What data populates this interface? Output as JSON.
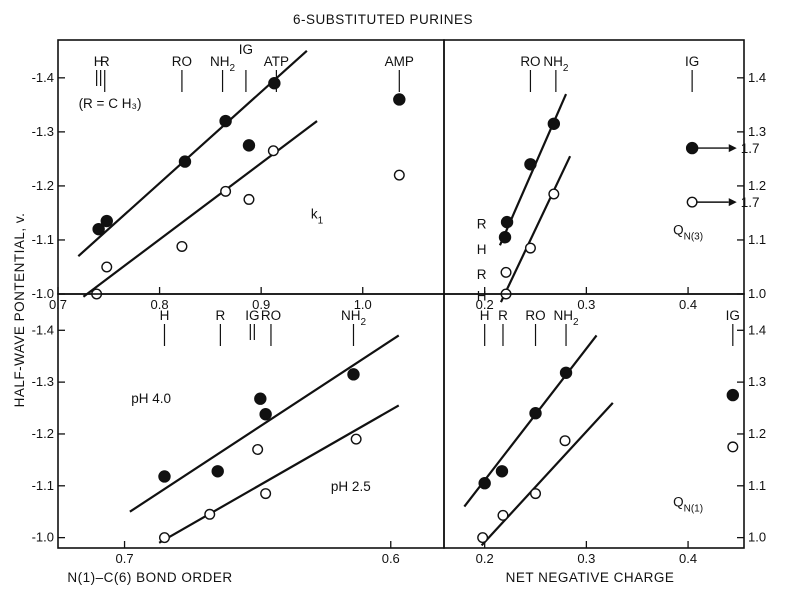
{
  "chart_data": {
    "type": "scatter",
    "title": "6-SUBSTITUTED PURINES",
    "ylabel": "HALF-WAVE PONTENTIAL, v.",
    "panels": [
      {
        "id": "top-left",
        "x": {
          "lim": [
            0.7,
            1.08
          ],
          "ticks": [
            0.7,
            0.8,
            0.9,
            1.0
          ],
          "tick_labels": [
            "0.7",
            "0.8",
            "0.9",
            "1.0"
          ]
        },
        "y": {
          "lim": [
            -1.0,
            -1.47
          ],
          "ticks": [
            -1.0,
            -1.1,
            -1.2,
            -1.3,
            -1.4
          ],
          "tick_labels": [
            "-1.0",
            "-1.1",
            "-1.2",
            "-1.3",
            "-1.4"
          ],
          "side": "left"
        },
        "annotations": [
          {
            "text": "k",
            "sub": "1",
            "x": 0.955,
            "y": -1.14
          }
        ],
        "substituent_markers": [
          {
            "label": "H",
            "x": 0.74,
            "double": true
          },
          {
            "label": "R",
            "x": 0.746
          },
          {
            "label": "RO",
            "x": 0.822
          },
          {
            "label": "NH",
            "sub": "2",
            "x": 0.862
          },
          {
            "label": "IG",
            "x": 0.885,
            "raised": true
          },
          {
            "label": "ATP",
            "x": 0.915
          },
          {
            "label": "AMP",
            "x": 1.036
          }
        ],
        "marker_note": "(R = C H₃)",
        "series": [
          {
            "marker": "filled",
            "points": [
              [
                0.74,
                -1.12
              ],
              [
                0.748,
                -1.135
              ],
              [
                0.825,
                -1.245
              ],
              [
                0.865,
                -1.32
              ],
              [
                0.888,
                -1.275
              ],
              [
                0.913,
                -1.39
              ],
              [
                1.036,
                -1.36
              ]
            ]
          },
          {
            "marker": "open",
            "points": [
              [
                0.738,
                -1.0
              ],
              [
                0.748,
                -1.05
              ],
              [
                0.822,
                -1.088
              ],
              [
                0.865,
                -1.19
              ],
              [
                0.888,
                -1.175
              ],
              [
                0.912,
                -1.265
              ],
              [
                1.036,
                -1.22
              ]
            ]
          }
        ],
        "lines": [
          {
            "x": [
              0.72,
              0.945
            ],
            "y": [
              -1.07,
              -1.45
            ]
          },
          {
            "x": [
              0.725,
              0.955
            ],
            "y": [
              -0.995,
              -1.32
            ]
          }
        ]
      },
      {
        "id": "top-right",
        "x": {
          "lim": [
            0.16,
            0.455
          ],
          "ticks": [
            0.2,
            0.3,
            0.4
          ],
          "tick_labels": [
            "0.2",
            "0.3",
            "0.4"
          ]
        },
        "y": {
          "lim": [
            -1.0,
            -1.47
          ],
          "ticks": [
            -1.0,
            -1.1,
            -1.2,
            -1.3,
            -1.4
          ],
          "tick_labels": [
            "1.0",
            "1.1",
            "1.2",
            "1.3",
            "1.4"
          ],
          "side": "right"
        },
        "annotations": [
          {
            "text": "Q",
            "sub": "N(3)",
            "x": 0.4,
            "y": -1.11
          }
        ],
        "substituent_markers": [
          {
            "label": "RO",
            "x": 0.245
          },
          {
            "label": "NH",
            "sub": "2",
            "x": 0.27
          },
          {
            "label": "IG",
            "x": 0.404
          }
        ],
        "side_labels": [
          {
            "text": "R",
            "x": 0.197,
            "y": -1.13
          },
          {
            "text": "H",
            "x": 0.197,
            "y": -1.083
          },
          {
            "text": "R",
            "x": 0.197,
            "y": -1.037
          },
          {
            "text": "H",
            "x": 0.197,
            "y": -0.997
          }
        ],
        "series": [
          {
            "marker": "filled",
            "points": [
              [
                0.222,
                -1.133
              ],
              [
                0.22,
                -1.105
              ],
              [
                0.245,
                -1.24
              ],
              [
                0.268,
                -1.315
              ],
              [
                0.404,
                -1.27
              ]
            ]
          },
          {
            "marker": "open",
            "points": [
              [
                0.221,
                -1.0
              ],
              [
                0.221,
                -1.04
              ],
              [
                0.245,
                -1.085
              ],
              [
                0.268,
                -1.185
              ],
              [
                0.404,
                -1.17
              ]
            ]
          }
        ],
        "arrows": [
          {
            "from": [
              0.408,
              -1.27
            ],
            "to": [
              0.44,
              -1.27
            ],
            "label": "1.7"
          },
          {
            "from": [
              0.408,
              -1.17
            ],
            "to": [
              0.44,
              -1.17
            ],
            "label": "1.7"
          }
        ],
        "lines": [
          {
            "x": [
              0.215,
              0.28
            ],
            "y": [
              -1.09,
              -1.37
            ]
          },
          {
            "x": [
              0.216,
              0.284
            ],
            "y": [
              -0.985,
              -1.255
            ]
          }
        ]
      },
      {
        "id": "bottom-left",
        "x": {
          "lim": [
            0.725,
            0.58
          ],
          "ticks": [
            0.7,
            0.6
          ],
          "tick_labels": [
            "0.7",
            "0.6"
          ]
        },
        "y": {
          "lim": [
            -0.98,
            -1.47
          ],
          "ticks": [
            -1.0,
            -1.1,
            -1.2,
            -1.3,
            -1.4
          ],
          "tick_labels": [
            "-1.0",
            "-1.1",
            "-1.2",
            "-1.3",
            "-1.4"
          ],
          "side": "left"
        },
        "xlabel": "N(1)–C(6) BOND ORDER",
        "series_labels": [
          {
            "text": "pH 4.0",
            "x": 0.69,
            "y": -1.26
          },
          {
            "text": "pH 2.5",
            "x": 0.615,
            "y": -1.09
          }
        ],
        "substituent_markers": [
          {
            "label": "H",
            "x": 0.685
          },
          {
            "label": "R",
            "x": 0.664
          },
          {
            "label": "IG",
            "x": 0.652,
            "double": true
          },
          {
            "label": "RO",
            "x": 0.645
          },
          {
            "label": "NH",
            "sub": "2",
            "x": 0.614
          }
        ],
        "series": [
          {
            "name": "pH 4.0",
            "marker": "filled",
            "points": [
              [
                0.685,
                -1.118
              ],
              [
                0.665,
                -1.128
              ],
              [
                0.649,
                -1.268
              ],
              [
                0.647,
                -1.238
              ],
              [
                0.614,
                -1.315
              ]
            ]
          },
          {
            "name": "pH 2.5",
            "marker": "open",
            "points": [
              [
                0.685,
                -1.0
              ],
              [
                0.668,
                -1.045
              ],
              [
                0.65,
                -1.17
              ],
              [
                0.647,
                -1.085
              ],
              [
                0.613,
                -1.19
              ]
            ]
          }
        ],
        "lines": [
          {
            "x": [
              0.698,
              0.597
            ],
            "y": [
              -1.05,
              -1.39
            ]
          },
          {
            "x": [
              0.687,
              0.597
            ],
            "y": [
              -0.99,
              -1.255
            ]
          }
        ]
      },
      {
        "id": "bottom-right",
        "x": {
          "lim": [
            0.16,
            0.455
          ],
          "ticks": [
            0.2,
            0.3,
            0.4
          ],
          "tick_labels": [
            "0.2",
            "0.3",
            "0.4"
          ]
        },
        "y": {
          "lim": [
            -0.98,
            -1.47
          ],
          "ticks": [
            -1.0,
            -1.1,
            -1.2,
            -1.3,
            -1.4
          ],
          "tick_labels": [
            "1.0",
            "1.1",
            "1.2",
            "1.3",
            "1.4"
          ],
          "side": "right"
        },
        "xlabel": "NET NEGATIVE CHARGE",
        "annotations": [
          {
            "text": "Q",
            "sub": "N(1)",
            "x": 0.4,
            "y": -1.06
          }
        ],
        "substituent_markers": [
          {
            "label": "H",
            "x": 0.2
          },
          {
            "label": "R",
            "x": 0.218
          },
          {
            "label": "RO",
            "x": 0.25
          },
          {
            "label": "NH",
            "sub": "2",
            "x": 0.28
          },
          {
            "label": "IG",
            "x": 0.444
          }
        ],
        "series": [
          {
            "marker": "filled",
            "points": [
              [
                0.2,
                -1.105
              ],
              [
                0.217,
                -1.128
              ],
              [
                0.25,
                -1.24
              ],
              [
                0.28,
                -1.318
              ],
              [
                0.444,
                -1.275
              ]
            ]
          },
          {
            "marker": "open",
            "points": [
              [
                0.198,
                -1.0
              ],
              [
                0.218,
                -1.043
              ],
              [
                0.25,
                -1.085
              ],
              [
                0.279,
                -1.187
              ],
              [
                0.444,
                -1.175
              ]
            ]
          }
        ],
        "lines": [
          {
            "x": [
              0.18,
              0.31
            ],
            "y": [
              -1.06,
              -1.39
            ]
          },
          {
            "x": [
              0.197,
              0.326
            ],
            "y": [
              -0.985,
              -1.26
            ]
          }
        ]
      }
    ]
  }
}
